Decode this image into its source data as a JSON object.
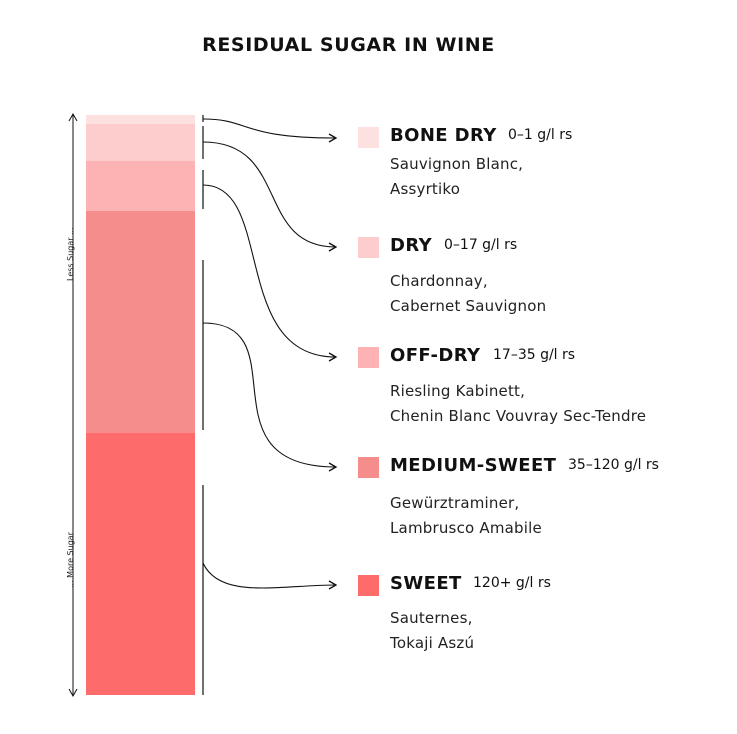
{
  "title": "RESIDUAL SUGAR IN WINE",
  "axis": {
    "less_label": "Less Sugar ...",
    "more_label": "... More Sugar"
  },
  "categories": [
    {
      "name": "BONE DRY",
      "range": "0–1 g/l rs",
      "examples": [
        "Sauvignon Blanc,",
        "Assyrtiko"
      ],
      "color": "#fde0e0"
    },
    {
      "name": "DRY",
      "range": "0–17 g/l rs",
      "examples": [
        "Chardonnay,",
        "Cabernet Sauvignon"
      ],
      "color": "#fdcccc"
    },
    {
      "name": "OFF-DRY",
      "range": "17–35 g/l rs",
      "examples": [
        "Riesling Kabinett,",
        "Chenin Blanc Vouvray Sec-Tendre"
      ],
      "color": "#fdb3b3"
    },
    {
      "name": "MEDIUM-SWEET",
      "range": "35–120 g/l rs",
      "examples": [
        "Gewürztraminer,",
        "Lambrusco Amabile"
      ],
      "color": "#f58d8d"
    },
    {
      "name": "SWEET",
      "range": "120+ g/l rs",
      "examples": [
        "Sauternes,",
        "Tokaji Aszú"
      ],
      "color": "#fd6b6b"
    }
  ]
}
